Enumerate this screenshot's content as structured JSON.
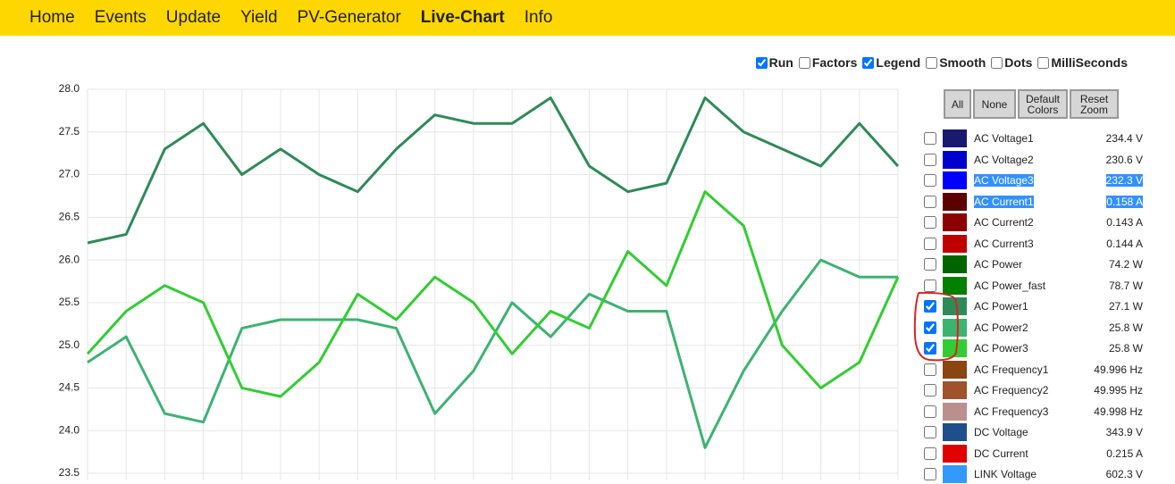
{
  "nav": {
    "items": [
      "Home",
      "Events",
      "Update",
      "Yield",
      "PV-Generator",
      "Live-Chart",
      "Info"
    ],
    "active": 5
  },
  "options": [
    {
      "label": "Run",
      "checked": true
    },
    {
      "label": "Factors",
      "checked": false
    },
    {
      "label": "Legend",
      "checked": true
    },
    {
      "label": "Smooth",
      "checked": false
    },
    {
      "label": "Dots",
      "checked": false
    },
    {
      "label": "MilliSeconds",
      "checked": false
    }
  ],
  "buttons": [
    "All",
    "None",
    "Default Colors",
    "Reset Zoom"
  ],
  "legend": {
    "rows": [
      {
        "label": "AC Voltage1",
        "color": "#191970",
        "value": "234.4 V",
        "checked": false
      },
      {
        "label": "AC Voltage2",
        "color": "#0000cd",
        "value": "230.6 V",
        "checked": false
      },
      {
        "label": "AC Voltage3",
        "color": "#0000ff",
        "value": "232.3 V",
        "checked": false,
        "selected": true
      },
      {
        "label": "AC Current1",
        "color": "#5c0000",
        "value": "0.158 A",
        "checked": false,
        "selected": true
      },
      {
        "label": "AC Current2",
        "color": "#8b0000",
        "value": "0.143 A",
        "checked": false
      },
      {
        "label": "AC Current3",
        "color": "#c00000",
        "value": "0.144 A",
        "checked": false
      },
      {
        "label": "AC Power",
        "color": "#006400",
        "value": "74.2 W",
        "checked": false
      },
      {
        "label": "AC Power_fast",
        "color": "#008000",
        "value": "78.7 W",
        "checked": false
      },
      {
        "label": "AC Power1",
        "color": "#2e8b57",
        "value": "27.1 W",
        "checked": true
      },
      {
        "label": "AC Power2",
        "color": "#3cb371",
        "value": "25.8 W",
        "checked": true
      },
      {
        "label": "AC Power3",
        "color": "#32cd32",
        "value": "25.8 W",
        "checked": true
      },
      {
        "label": "AC Frequency1",
        "color": "#8b4513",
        "value": "49.996 Hz",
        "checked": false
      },
      {
        "label": "AC Frequency2",
        "color": "#a0522d",
        "value": "49.995 Hz",
        "checked": false
      },
      {
        "label": "AC Frequency3",
        "color": "#bc8f8f",
        "value": "49.998 Hz",
        "checked": false
      },
      {
        "label": "DC Voltage",
        "color": "#1f4e8c",
        "value": "343.9 V",
        "checked": false
      },
      {
        "label": "DC Current",
        "color": "#e00000",
        "value": "0.215 A",
        "checked": false
      },
      {
        "label": "LINK Voltage",
        "color": "#3399ff",
        "value": "602.3 V",
        "checked": false
      }
    ]
  },
  "chart_data": {
    "type": "line",
    "grid": true,
    "ylim": [
      23.5,
      28.0
    ],
    "yticks": [
      23.5,
      {
        "value": 24,
        "label": "24.0"
      },
      24.5,
      {
        "value": 25,
        "label": "25.0"
      },
      25.5,
      {
        "value": 26,
        "label": "26.0"
      },
      26.5,
      {
        "value": 27,
        "label": "27.0"
      },
      27.5,
      {
        "value": 28,
        "label": "28.0"
      }
    ],
    "series": [
      {
        "color": "#2e8b57",
        "values": [
          26.2,
          26.3,
          27.3,
          27.6,
          27.0,
          27.3,
          27.0,
          26.8,
          27.3,
          27.7,
          27.6,
          27.6,
          27.9,
          27.1,
          26.8,
          26.9,
          27.9,
          27.5,
          27.3,
          27.1,
          27.6,
          27.1
        ]
      },
      {
        "color": "#3cb371",
        "values": [
          24.8,
          25.1,
          24.2,
          24.1,
          25.2,
          25.3,
          25.3,
          25.3,
          25.2,
          24.2,
          24.7,
          25.5,
          25.1,
          25.6,
          25.4,
          25.4,
          23.8,
          24.7,
          25.4,
          26.0,
          25.8,
          25.8
        ]
      },
      {
        "color": "#32cd32",
        "values": [
          24.9,
          25.4,
          25.7,
          25.5,
          24.5,
          24.4,
          24.8,
          25.6,
          25.3,
          25.8,
          25.5,
          24.9,
          25.4,
          25.2,
          26.1,
          25.7,
          26.8,
          26.4,
          25.0,
          24.5,
          24.8,
          25.8
        ]
      }
    ]
  }
}
